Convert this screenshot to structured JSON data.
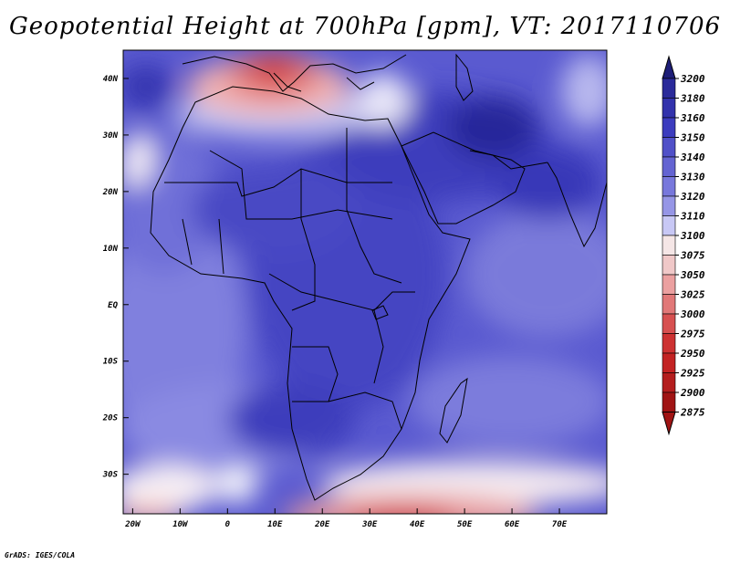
{
  "title": "Geopotential Height at 700hPa [gpm], VT: 2017110706",
  "footer": "GrADS: IGES/COLA",
  "map": {
    "lat_labels": [
      "40N",
      "30N",
      "20N",
      "10N",
      "EQ",
      "10S",
      "20S",
      "30S"
    ],
    "lat_values": [
      40,
      30,
      20,
      10,
      0,
      -10,
      -20,
      -30
    ],
    "lon_labels": [
      "20W",
      "10W",
      "0",
      "10E",
      "20E",
      "30E",
      "40E",
      "50E",
      "60E",
      "70E"
    ],
    "lon_values": [
      -20,
      -10,
      0,
      10,
      20,
      30,
      40,
      50,
      60,
      70
    ],
    "lon_range": [
      -22,
      80
    ],
    "lat_range": [
      -37,
      45
    ]
  },
  "colorbar": {
    "levels": [
      "3200",
      "3180",
      "3160",
      "3150",
      "3140",
      "3130",
      "3120",
      "3110",
      "3100",
      "3075",
      "3050",
      "3025",
      "3000",
      "2975",
      "2950",
      "2925",
      "2900",
      "2875"
    ],
    "colors": [
      "#1e1e78",
      "#2a2a9a",
      "#3232ac",
      "#3c3cbe",
      "#5050c8",
      "#6464d2",
      "#7878dc",
      "#9696e6",
      "#c8c8f5",
      "#f5e6e6",
      "#f0c8c8",
      "#eba0a0",
      "#e17878",
      "#d75050",
      "#cd3232",
      "#c32323",
      "#b41e1e",
      "#a01414"
    ]
  }
}
